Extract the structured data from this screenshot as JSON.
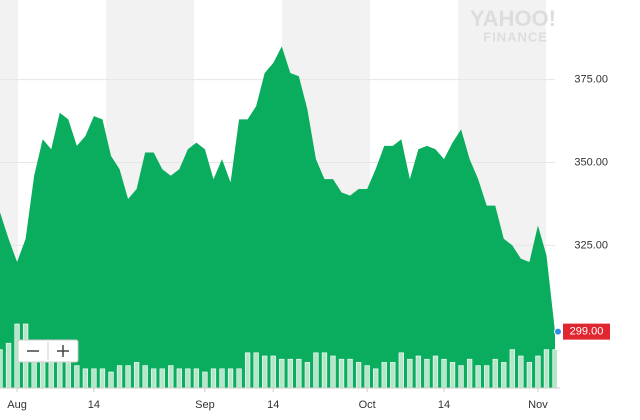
{
  "chart_data": {
    "type": "area",
    "logo": "YAHOO!",
    "logo_subtitle": "FINANCE",
    "categories": [
      null,
      null,
      "Aug",
      null,
      null,
      null,
      null,
      null,
      null,
      null,
      null,
      "14",
      null,
      null,
      null,
      null,
      null,
      null,
      null,
      null,
      null,
      null,
      null,
      null,
      "Sep",
      null,
      null,
      null,
      null,
      null,
      null,
      null,
      "14",
      null,
      null,
      null,
      null,
      null,
      null,
      null,
      null,
      null,
      null,
      "Oct",
      null,
      null,
      null,
      null,
      null,
      null,
      null,
      null,
      "14",
      null,
      null,
      null,
      null,
      null,
      null,
      null,
      null,
      null,
      null,
      "Nov",
      null,
      null
    ],
    "values": [
      335,
      327,
      320,
      327,
      346,
      357,
      354,
      365,
      363,
      355,
      358,
      364,
      363,
      352,
      348,
      339,
      342,
      353,
      353,
      348,
      346,
      348,
      354,
      356,
      354,
      345,
      351,
      344,
      363,
      363,
      367,
      377,
      380,
      385,
      377,
      376,
      366,
      351,
      345,
      345,
      341,
      340,
      342,
      342,
      348,
      355,
      355,
      357,
      345,
      354,
      355,
      354,
      351,
      356,
      360,
      351,
      345,
      337,
      337,
      327,
      325,
      321,
      320,
      331,
      322,
      299
    ],
    "value_labels": [
      null,
      null,
      null,
      null,
      null,
      null,
      null,
      null,
      null,
      null,
      null,
      null,
      null,
      null,
      null,
      null,
      null,
      null,
      null,
      null,
      null,
      null,
      null,
      null,
      null,
      null,
      null,
      null,
      null,
      null,
      null,
      null,
      null,
      null,
      null,
      null,
      null,
      null,
      null,
      null,
      null,
      null,
      null,
      null,
      null,
      null,
      null,
      null,
      null,
      null,
      null,
      null,
      null,
      null,
      null,
      null,
      null,
      null,
      null,
      null,
      null,
      null,
      null,
      null,
      null,
      "299.00"
    ],
    "volume": [
      12,
      14,
      20,
      20,
      12,
      9,
      8,
      9,
      8,
      7,
      6,
      6,
      6,
      5,
      7,
      7,
      8,
      7,
      6,
      6,
      7,
      6,
      6,
      6,
      5,
      6,
      6,
      6,
      6,
      11,
      11,
      10,
      10,
      9,
      9,
      9,
      8,
      11,
      11,
      10,
      9,
      9,
      8,
      7,
      6,
      8,
      8,
      11,
      9,
      10,
      9,
      10,
      9,
      8,
      7,
      9,
      7,
      7,
      9,
      8,
      12,
      10,
      8,
      10,
      12,
      12
    ],
    "color": "#0aad5e",
    "volume_color": "#b6e6c9",
    "last_color": "#e0262f",
    "marker_color": "#2f8ee5",
    "ylim": [
      282,
      399
    ],
    "yticks": [
      {
        "value": 325,
        "label": "325.00"
      },
      {
        "value": 350,
        "label": "350.00"
      },
      {
        "value": 375,
        "label": "375.00"
      }
    ],
    "grid": true
  }
}
